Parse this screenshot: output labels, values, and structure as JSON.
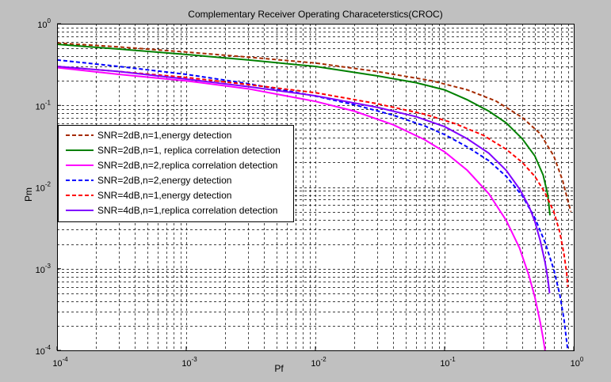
{
  "chart_data": {
    "type": "line",
    "title": "Complementary Receiver Operating Characeterstics(CROC)",
    "xlabel": "Pf",
    "ylabel": "Pm",
    "xscale": "log",
    "yscale": "log",
    "xlim": [
      0.0001,
      1
    ],
    "ylim": [
      0.0001,
      1
    ],
    "grid": true,
    "legend_position": "left-middle",
    "x_ticks": [
      {
        "base": "10",
        "exp": "-4",
        "value": 0.0001
      },
      {
        "base": "10",
        "exp": "-3",
        "value": 0.001
      },
      {
        "base": "10",
        "exp": "-2",
        "value": 0.01
      },
      {
        "base": "10",
        "exp": "-1",
        "value": 0.1
      },
      {
        "base": "10",
        "exp": "0",
        "value": 1
      }
    ],
    "y_ticks": [
      {
        "base": "10",
        "exp": "-4",
        "value": 0.0001
      },
      {
        "base": "10",
        "exp": "-3",
        "value": 0.001
      },
      {
        "base": "10",
        "exp": "-2",
        "value": 0.01
      },
      {
        "base": "10",
        "exp": "-1",
        "value": 0.1
      },
      {
        "base": "10",
        "exp": "0",
        "value": 1
      }
    ],
    "series": [
      {
        "name": "SNR=2dB,n=1,energy detection",
        "color": "#a52a00",
        "dash": true,
        "x": [
          0.0001,
          0.0003,
          0.001,
          0.003,
          0.01,
          0.03,
          0.08,
          0.15,
          0.25,
          0.4,
          0.55,
          0.7,
          0.82,
          0.9,
          0.95
        ],
        "y": [
          0.58,
          0.52,
          0.45,
          0.39,
          0.33,
          0.26,
          0.2,
          0.155,
          0.113,
          0.071,
          0.045,
          0.024,
          0.012,
          0.0068,
          0.005
        ]
      },
      {
        "name": "SNR=2dB,n=1, replica correlation detection",
        "color": "#008000",
        "dash": false,
        "x": [
          0.0001,
          0.0003,
          0.001,
          0.003,
          0.01,
          0.03,
          0.06,
          0.1,
          0.15,
          0.22,
          0.3,
          0.4,
          0.5,
          0.58,
          0.63,
          0.655
        ],
        "y": [
          0.56,
          0.49,
          0.42,
          0.36,
          0.3,
          0.23,
          0.19,
          0.155,
          0.117,
          0.085,
          0.061,
          0.039,
          0.024,
          0.014,
          0.008,
          0.0045
        ]
      },
      {
        "name": "SNR=2dB,n=2,replica correlation detection",
        "color": "#ff00ff",
        "dash": false,
        "x": [
          0.0001,
          0.0003,
          0.001,
          0.003,
          0.01,
          0.02,
          0.04,
          0.07,
          0.1,
          0.15,
          0.22,
          0.3,
          0.38,
          0.45,
          0.5,
          0.55,
          0.58,
          0.6
        ],
        "y": [
          0.29,
          0.24,
          0.2,
          0.16,
          0.112,
          0.085,
          0.058,
          0.038,
          0.027,
          0.016,
          0.0083,
          0.0039,
          0.0018,
          0.00082,
          0.00045,
          0.00022,
          0.00014,
          0.0001
        ]
      },
      {
        "name": "SNR=2dB,n=2,energy detection",
        "color": "#0000ff",
        "dash": true,
        "x": [
          0.0001,
          0.0003,
          0.001,
          0.003,
          0.01,
          0.02,
          0.04,
          0.07,
          0.1,
          0.15,
          0.22,
          0.3,
          0.4,
          0.5,
          0.6,
          0.7,
          0.78,
          0.84,
          0.88,
          0.9
        ],
        "y": [
          0.36,
          0.3,
          0.24,
          0.185,
          0.13,
          0.102,
          0.076,
          0.056,
          0.044,
          0.031,
          0.021,
          0.0135,
          0.0078,
          0.0042,
          0.0021,
          0.00098,
          0.00048,
          0.00024,
          0.00013,
          0.0001
        ]
      },
      {
        "name": "SNR=4dB,n=1,energy detection",
        "color": "#ff0000",
        "dash": true,
        "x": [
          0.0001,
          0.0003,
          0.001,
          0.003,
          0.01,
          0.03,
          0.07,
          0.12,
          0.2,
          0.3,
          0.4,
          0.5,
          0.6,
          0.7,
          0.78,
          0.84,
          0.88,
          0.9
        ],
        "y": [
          0.3,
          0.26,
          0.22,
          0.18,
          0.143,
          0.105,
          0.078,
          0.06,
          0.043,
          0.029,
          0.02,
          0.0135,
          0.0085,
          0.005,
          0.0028,
          0.0015,
          0.0009,
          0.0006
        ]
      },
      {
        "name": "SNR=4dB,n=1,replica correlation detection",
        "color": "#8000ff",
        "dash": false,
        "x": [
          0.0001,
          0.0003,
          0.001,
          0.003,
          0.01,
          0.03,
          0.06,
          0.1,
          0.15,
          0.22,
          0.3,
          0.38,
          0.45,
          0.5,
          0.55,
          0.6,
          0.63,
          0.65
        ],
        "y": [
          0.3,
          0.26,
          0.21,
          0.17,
          0.131,
          0.095,
          0.073,
          0.055,
          0.039,
          0.026,
          0.016,
          0.0095,
          0.0058,
          0.0038,
          0.0022,
          0.0012,
          0.00075,
          0.0005
        ]
      }
    ]
  }
}
